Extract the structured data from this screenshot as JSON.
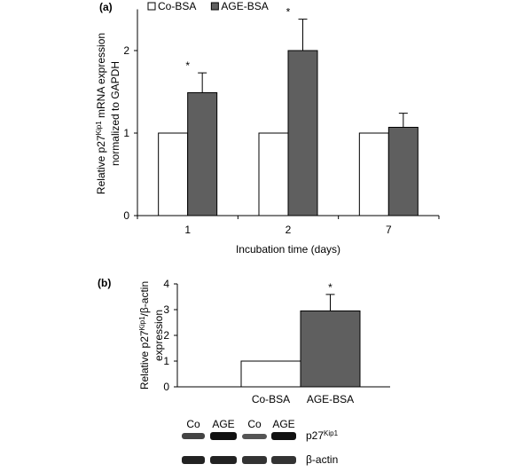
{
  "chart_data": [
    {
      "type": "bar",
      "panel": "(a)",
      "ylabel": [
        [
          {
            "text": "Relative p27"
          },
          {
            "text": "Kip1",
            "sup": true
          },
          {
            "text": " mRNA expression"
          }
        ],
        [
          {
            "text": "normalized to GAPDH"
          }
        ]
      ],
      "xlabel": "Incubation time (days)",
      "categories": [
        "1",
        "2",
        "7"
      ],
      "series": [
        {
          "name": "Co-BSA",
          "color": "#ffffff",
          "values": [
            1,
            1,
            1
          ]
        },
        {
          "name": "AGE-BSA",
          "color": "#5f5f5f",
          "values": [
            1.49,
            2.0,
            1.07
          ],
          "errors": [
            0.24,
            0.38,
            0.17
          ]
        }
      ],
      "annotations": [
        {
          "text": "*",
          "x": "1"
        },
        {
          "text": "*",
          "x": "2"
        }
      ],
      "ylim": [
        0,
        2.5
      ],
      "yticks": [
        0,
        1,
        2
      ],
      "legend": "top-left"
    },
    {
      "type": "bar",
      "panel": "(b)",
      "ylabel": [
        [
          {
            "text": "Relative p27"
          },
          {
            "text": "Kip1",
            "sup": true
          },
          {
            "text": "/β-actin"
          }
        ],
        [
          {
            "text": "expression"
          }
        ]
      ],
      "categories": [
        "Co-BSA",
        "AGE-BSA"
      ],
      "values": [
        1,
        2.95
      ],
      "errors": [
        null,
        0.64
      ],
      "colors": [
        "#ffffff",
        "#5f5f5f"
      ],
      "annotations": [
        {
          "text": "*",
          "x": "AGE-BSA"
        }
      ],
      "ylim": [
        0,
        4
      ],
      "yticks": [
        0,
        1,
        2,
        3,
        4
      ]
    }
  ],
  "blot": {
    "lanes": [
      "Co",
      "AGE",
      "Co",
      "AGE"
    ],
    "rows": [
      [
        {
          "text": "p27"
        },
        {
          "text": "Kip1",
          "sup": true
        }
      ],
      [
        {
          "text": "β-actin"
        }
      ]
    ]
  }
}
